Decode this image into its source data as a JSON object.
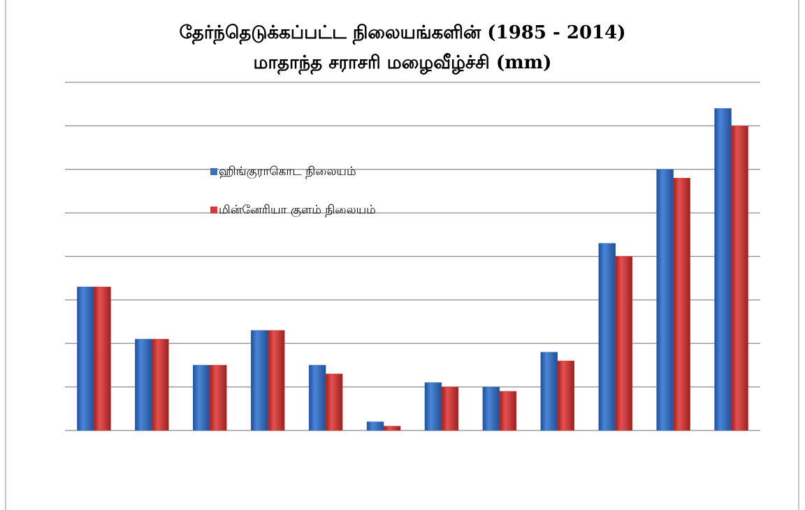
{
  "chart_data": {
    "type": "bar",
    "title": [
      "தேர்ந்தெடுக்கப்பட்ட நிலையங்களின் (1985 - 2014)",
      "மாதாந்த சராசரி மழைவீழ்ச்சி (mm)"
    ],
    "categories": [
      null,
      null,
      null,
      null,
      null,
      null,
      null,
      null,
      null,
      null,
      null,
      null
    ],
    "series": [
      {
        "name": "ஹிங்குராகொட நிலையம்",
        "color": "#3a6fc0",
        "values": [
          3.3,
          2.1,
          1.5,
          2.3,
          1.5,
          0.2,
          1.1,
          1.0,
          1.8,
          4.3,
          6.0,
          7.4
        ]
      },
      {
        "name": "மின்னேரியா குளம் நிலையம்",
        "color": "#d23b3b",
        "values": [
          3.3,
          2.1,
          1.5,
          2.3,
          1.3,
          0.1,
          1.0,
          0.9,
          1.6,
          4.0,
          5.8,
          7.0
        ]
      }
    ],
    "ylim": [
      0,
      8
    ],
    "yticks": [
      0,
      1,
      2,
      3,
      4,
      5,
      6,
      7,
      8
    ],
    "grid": true,
    "legend": "upper-left"
  }
}
